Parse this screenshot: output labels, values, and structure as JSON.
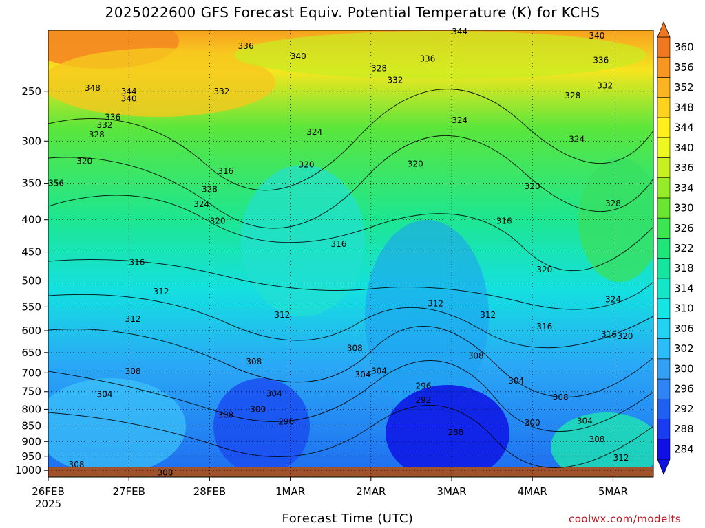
{
  "chart_data": {
    "type": "heatmap",
    "title": "2025022600 GFS Forecast Equiv. Potential Temperature (K) for KCHS",
    "xlabel": "Forecast Time (UTC)",
    "ylabel": "",
    "credit": "coolwx.com/modelts",
    "x_ticks": [
      "26FEB",
      "27FEB",
      "28FEB",
      "1MAR",
      "2MAR",
      "3MAR",
      "4MAR",
      "5MAR"
    ],
    "x_year": "2025",
    "y_ticks": [
      250,
      300,
      350,
      400,
      450,
      500,
      550,
      600,
      650,
      700,
      750,
      800,
      850,
      900,
      950,
      1000
    ],
    "y_scale": "log-pressure",
    "ylim": [
      1025,
      200
    ],
    "colorbar": [
      284,
      288,
      292,
      296,
      300,
      302,
      306,
      310,
      314,
      318,
      322,
      326,
      330,
      334,
      336,
      340,
      344,
      348,
      352,
      356,
      360
    ],
    "colorbar_colors": [
      "#1010e6",
      "#1a3cf0",
      "#2060f0",
      "#2e84f4",
      "#34a0f4",
      "#2cbcf8",
      "#22d2f2",
      "#14e6e6",
      "#14e6c8",
      "#14e6a0",
      "#1ee678",
      "#3ce650",
      "#6ae632",
      "#96ec28",
      "#c6f020",
      "#ecf820",
      "#fff01c",
      "#ffd21e",
      "#fcb420",
      "#f89622",
      "#f07820"
    ],
    "contour_labels": [
      {
        "x": 0.1,
        "y": 350,
        "v": "356"
      },
      {
        "x": 0.55,
        "y": 247,
        "v": "348"
      },
      {
        "x": 1.0,
        "y": 250,
        "v": "344"
      },
      {
        "x": 1.0,
        "y": 257,
        "v": "340"
      },
      {
        "x": 0.8,
        "y": 275,
        "v": "336"
      },
      {
        "x": 0.7,
        "y": 283,
        "v": "332"
      },
      {
        "x": 0.6,
        "y": 293,
        "v": "328"
      },
      {
        "x": 0.45,
        "y": 323,
        "v": "320"
      },
      {
        "x": 1.1,
        "y": 467,
        "v": "316"
      },
      {
        "x": 1.4,
        "y": 520,
        "v": "312"
      },
      {
        "x": 1.05,
        "y": 575,
        "v": "312"
      },
      {
        "x": 1.05,
        "y": 696,
        "v": "308"
      },
      {
        "x": 0.7,
        "y": 757,
        "v": "304"
      },
      {
        "x": 0.35,
        "y": 980,
        "v": "308"
      },
      {
        "x": 1.45,
        "y": 1008,
        "v": "308"
      },
      {
        "x": 2.0,
        "y": 358,
        "v": "328"
      },
      {
        "x": 1.9,
        "y": 378,
        "v": "324"
      },
      {
        "x": 2.1,
        "y": 402,
        "v": "320"
      },
      {
        "x": 2.2,
        "y": 335,
        "v": "316"
      },
      {
        "x": 2.2,
        "y": 816,
        "v": "308"
      },
      {
        "x": 2.15,
        "y": 250,
        "v": "332"
      },
      {
        "x": 2.45,
        "y": 212,
        "v": "336"
      },
      {
        "x": 3.1,
        "y": 220,
        "v": "340"
      },
      {
        "x": 3.3,
        "y": 290,
        "v": "324"
      },
      {
        "x": 3.2,
        "y": 327,
        "v": "320"
      },
      {
        "x": 3.6,
        "y": 437,
        "v": "316"
      },
      {
        "x": 2.9,
        "y": 566,
        "v": "312"
      },
      {
        "x": 2.55,
        "y": 672,
        "v": "308"
      },
      {
        "x": 2.8,
        "y": 755,
        "v": "304"
      },
      {
        "x": 2.6,
        "y": 800,
        "v": "300"
      },
      {
        "x": 2.95,
        "y": 837,
        "v": "296"
      },
      {
        "x": 4.1,
        "y": 230,
        "v": "328"
      },
      {
        "x": 4.3,
        "y": 240,
        "v": "332"
      },
      {
        "x": 4.7,
        "y": 222,
        "v": "336"
      },
      {
        "x": 5.1,
        "y": 201,
        "v": "344"
      },
      {
        "x": 4.55,
        "y": 326,
        "v": "320"
      },
      {
        "x": 3.8,
        "y": 640,
        "v": "308"
      },
      {
        "x": 3.9,
        "y": 705,
        "v": "304"
      },
      {
        "x": 4.1,
        "y": 695,
        "v": "304"
      },
      {
        "x": 5.1,
        "y": 278,
        "v": "324"
      },
      {
        "x": 4.8,
        "y": 543,
        "v": "312"
      },
      {
        "x": 4.65,
        "y": 735,
        "v": "296"
      },
      {
        "x": 4.65,
        "y": 773,
        "v": "292"
      },
      {
        "x": 5.05,
        "y": 870,
        "v": "288"
      },
      {
        "x": 5.45,
        "y": 566,
        "v": "312"
      },
      {
        "x": 5.3,
        "y": 658,
        "v": "308"
      },
      {
        "x": 5.65,
        "y": 402,
        "v": "316"
      },
      {
        "x": 6.0,
        "y": 354,
        "v": "320"
      },
      {
        "x": 5.8,
        "y": 721,
        "v": "304"
      },
      {
        "x": 6.0,
        "y": 840,
        "v": "300"
      },
      {
        "x": 6.15,
        "y": 591,
        "v": "316"
      },
      {
        "x": 6.15,
        "y": 480,
        "v": "320"
      },
      {
        "x": 6.35,
        "y": 766,
        "v": "308"
      },
      {
        "x": 6.8,
        "y": 204,
        "v": "340"
      },
      {
        "x": 6.85,
        "y": 223,
        "v": "336"
      },
      {
        "x": 6.9,
        "y": 245,
        "v": "332"
      },
      {
        "x": 6.5,
        "y": 254,
        "v": "328"
      },
      {
        "x": 6.55,
        "y": 298,
        "v": "324"
      },
      {
        "x": 6.65,
        "y": 835,
        "v": "304"
      },
      {
        "x": 6.8,
        "y": 893,
        "v": "308"
      },
      {
        "x": 7.0,
        "y": 377,
        "v": "328"
      },
      {
        "x": 7.0,
        "y": 535,
        "v": "324"
      },
      {
        "x": 6.95,
        "y": 608,
        "v": "316"
      },
      {
        "x": 7.15,
        "y": 612,
        "v": "320"
      },
      {
        "x": 7.1,
        "y": 955,
        "v": "312"
      }
    ]
  }
}
